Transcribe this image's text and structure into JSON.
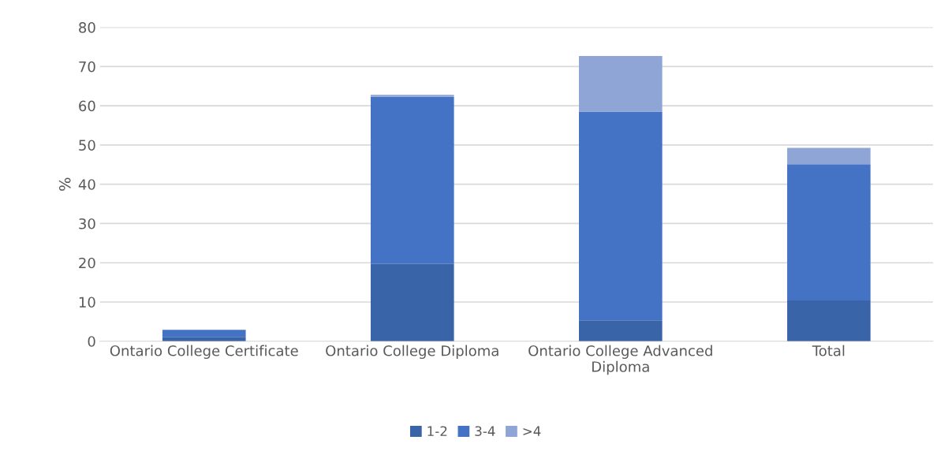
{
  "chart_data": {
    "type": "bar",
    "stacked": true,
    "ylabel": "%",
    "categories": [
      "Ontario College Certificate",
      "Ontario College Diploma",
      "Ontario College Advanced\nDiploma",
      "Total"
    ],
    "series": [
      {
        "name": "1-2",
        "color": "#3a64a8",
        "values": [
          1.1,
          19.7,
          5.3,
          10.4
        ]
      },
      {
        "name": "3-4",
        "color": "#4472c4",
        "values": [
          1.8,
          42.6,
          53.2,
          34.7
        ]
      },
      {
        "name": ">4",
        "color": "#8fa5d5",
        "values": [
          null,
          0.5,
          14.2,
          4.2
        ]
      }
    ],
    "ylim": [
      0,
      80
    ],
    "yticks": [
      0,
      10,
      20,
      30,
      40,
      50,
      60,
      70,
      80
    ],
    "grid": "y",
    "legend": "bottom"
  }
}
